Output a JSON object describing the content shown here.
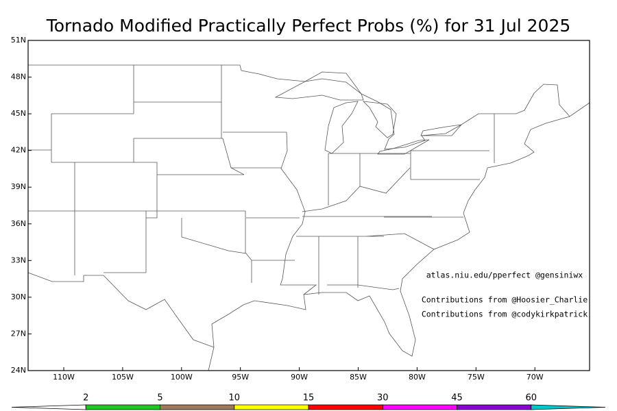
{
  "title": "Tornado Modified Practically Perfect Probs (%) for 31 Jul 2025",
  "latitude_labels": [
    "51N",
    "48N",
    "45N",
    "42N",
    "39N",
    "36N",
    "33N",
    "30N",
    "27N",
    "24N"
  ],
  "longitude_labels": [
    "110W",
    "105W",
    "100W",
    "95W",
    "90W",
    "85W",
    "80W",
    "75W",
    "70W"
  ],
  "annotations": [
    "atlas.niu.edu/pperfect @gensiniwx",
    "Contributions from @Hoosier_Charlie",
    "Contributions from @codykirkpatrick"
  ],
  "colorbar": {
    "labels": [
      "2",
      "5",
      "10",
      "15",
      "30",
      "45",
      "60"
    ],
    "colors": [
      "#ffffff",
      "#1ec81e",
      "#a0785a",
      "#ffff00",
      "#ff0000",
      "#ff00ff",
      "#8a00d2",
      "#00c8c8"
    ]
  }
}
